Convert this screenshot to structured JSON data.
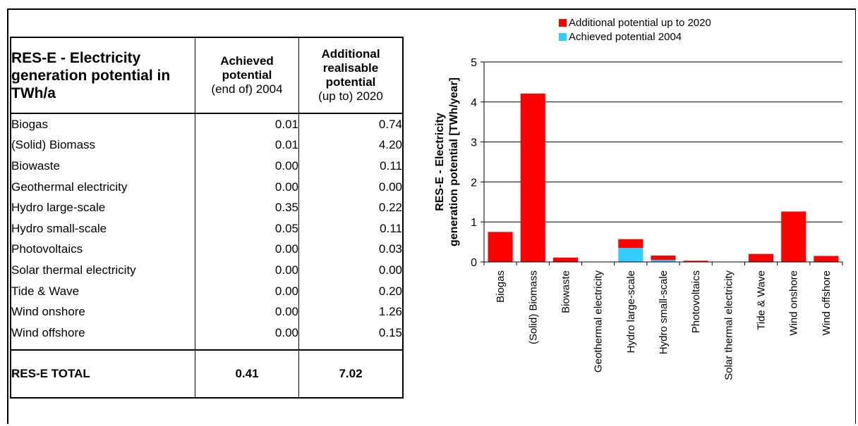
{
  "table": {
    "title": "RES-E - Electricity generation potential in TWh/a",
    "col1_bold": "Achieved potential",
    "col1_normal": "(end of) 2004",
    "col2_bold": "Additional realisable potential",
    "col2_normal": "(up to) 2020",
    "rows": [
      {
        "name": "Biogas",
        "achieved": "0.01",
        "additional": "0.74"
      },
      {
        "name": "(Solid) Biomass",
        "achieved": "0.01",
        "additional": "4.20"
      },
      {
        "name": "Biowaste",
        "achieved": "0.00",
        "additional": "0.11"
      },
      {
        "name": "Geothermal electricity",
        "achieved": "0.00",
        "additional": "0.00"
      },
      {
        "name": "Hydro large-scale",
        "achieved": "0.35",
        "additional": "0.22"
      },
      {
        "name": "Hydro small-scale",
        "achieved": "0.05",
        "additional": "0.11"
      },
      {
        "name": "Photovoltaics",
        "achieved": "0.00",
        "additional": "0.03"
      },
      {
        "name": "Solar thermal electricity",
        "achieved": "0.00",
        "additional": "0.00"
      },
      {
        "name": "Tide & Wave",
        "achieved": "0.00",
        "additional": "0.20"
      },
      {
        "name": "Wind onshore",
        "achieved": "0.00",
        "additional": "1.26"
      },
      {
        "name": "Wind offshore",
        "achieved": "0.00",
        "additional": "0.15"
      }
    ],
    "total": {
      "name": "RES-E TOTAL",
      "achieved": "0.41",
      "additional": "7.02"
    }
  },
  "chart_data": {
    "type": "bar",
    "stacked": true,
    "categories": [
      "Biogas",
      "(Solid) Biomass",
      "Biowaste",
      "Geothermal electricity",
      "Hydro large-scale",
      "Hydro small-scale",
      "Photovoltaics",
      "Solar thermal electricity",
      "Tide & Wave",
      "Wind onshore",
      "Wind offshore"
    ],
    "series": [
      {
        "name": "Achieved potential 2004",
        "color": "#33ccff",
        "values": [
          0.01,
          0.01,
          0.0,
          0.0,
          0.35,
          0.05,
          0.0,
          0.0,
          0.0,
          0.0,
          0.0
        ]
      },
      {
        "name": "Additional potential up to 2020",
        "color": "#ff0000",
        "values": [
          0.74,
          4.2,
          0.11,
          0.0,
          0.22,
          0.11,
          0.03,
          0.0,
          0.2,
          1.26,
          0.15
        ]
      }
    ],
    "ylabel_line1": "RES-E - Electricity",
    "ylabel_line2": "generation potential [TWh/year]",
    "ylim": [
      0,
      5
    ],
    "yticks": [
      "0",
      "1",
      "2",
      "3",
      "4",
      "5"
    ],
    "grid": true,
    "legend_order": [
      "Additional potential up to 2020",
      "Achieved potential 2004"
    ],
    "legend_position": "top"
  }
}
